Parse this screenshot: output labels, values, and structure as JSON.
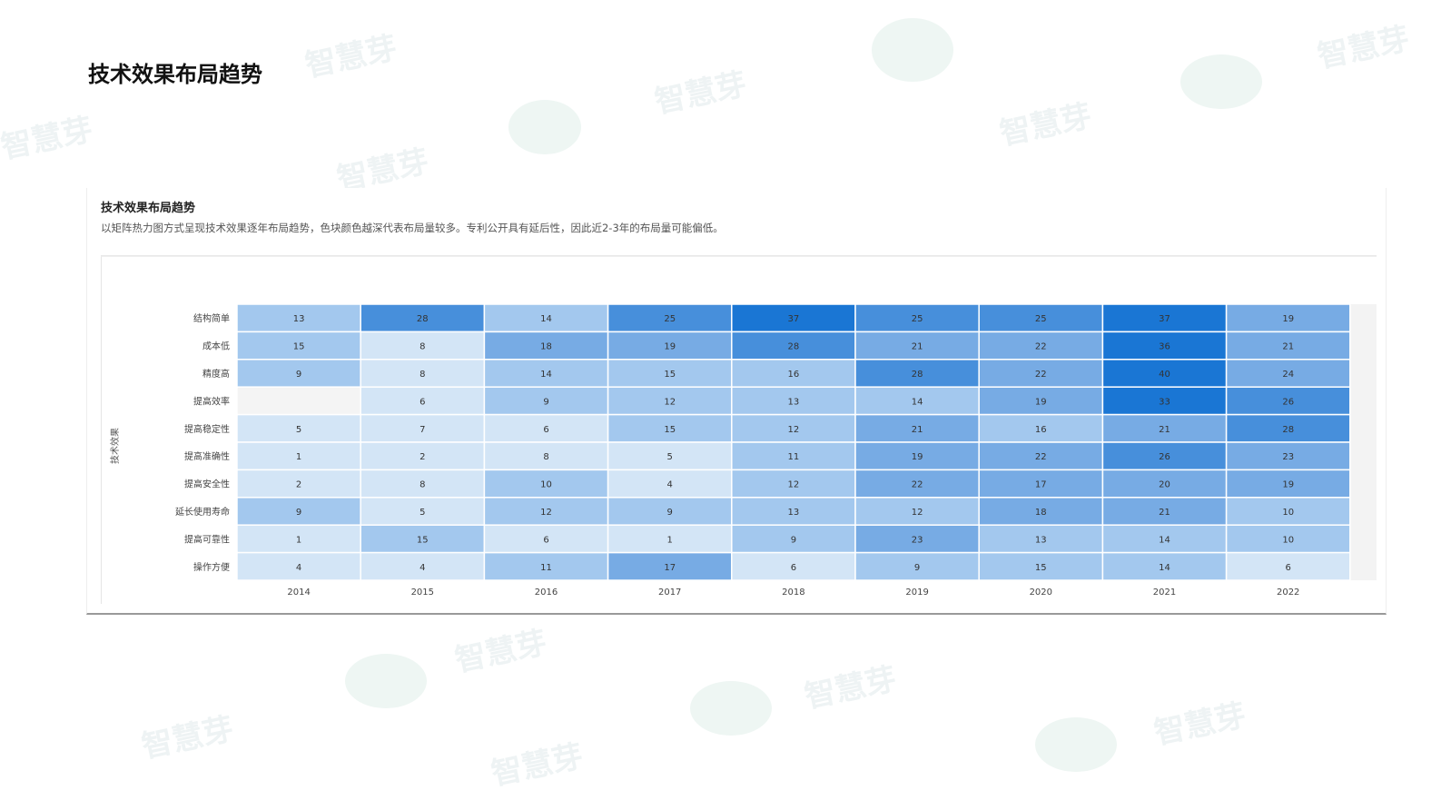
{
  "page": {
    "title": "技术效果布局趋势",
    "watermark": "智慧芽"
  },
  "card": {
    "title": "技术效果布局趋势",
    "description": "以矩阵热力图方式呈现技术效果逐年布局趋势，色块颜色越深代表布局量较多。专利公开具有延后性，因此近2-3年的布局量可能偏低。"
  },
  "chart_data": {
    "type": "heatmap",
    "ylabel": "技术效果",
    "xlabel": "",
    "x": [
      "2014",
      "2015",
      "2016",
      "2017",
      "2018",
      "2019",
      "2020",
      "2021",
      "2022"
    ],
    "y": [
      "结构简单",
      "成本低",
      "精度高",
      "提高效率",
      "提高稳定性",
      "提高准确性",
      "提高安全性",
      "延长使用寿命",
      "提高可靠性",
      "操作方便"
    ],
    "values": [
      [
        13,
        28,
        14,
        25,
        37,
        25,
        25,
        37,
        19
      ],
      [
        15,
        8,
        18,
        19,
        28,
        21,
        22,
        36,
        21
      ],
      [
        9,
        8,
        14,
        15,
        16,
        28,
        22,
        40,
        24
      ],
      [
        null,
        6,
        9,
        12,
        13,
        14,
        19,
        33,
        26
      ],
      [
        5,
        7,
        6,
        15,
        12,
        21,
        16,
        21,
        28
      ],
      [
        1,
        2,
        8,
        5,
        11,
        19,
        22,
        26,
        23
      ],
      [
        2,
        8,
        10,
        4,
        12,
        22,
        17,
        20,
        19
      ],
      [
        9,
        5,
        12,
        9,
        13,
        12,
        18,
        21,
        10
      ],
      [
        1,
        15,
        6,
        1,
        9,
        23,
        13,
        14,
        10
      ],
      [
        4,
        4,
        11,
        17,
        6,
        9,
        15,
        14,
        6
      ]
    ],
    "color_scale": {
      "empty": "#f4f4f4",
      "steps": [
        {
          "max": 8,
          "color": "#d3e5f6"
        },
        {
          "max": 16,
          "color": "#a3c8ee"
        },
        {
          "max": 24,
          "color": "#77abe4"
        },
        {
          "max": 32,
          "color": "#478fdb"
        },
        {
          "max": 1000,
          "color": "#1a76d4"
        }
      ]
    }
  }
}
